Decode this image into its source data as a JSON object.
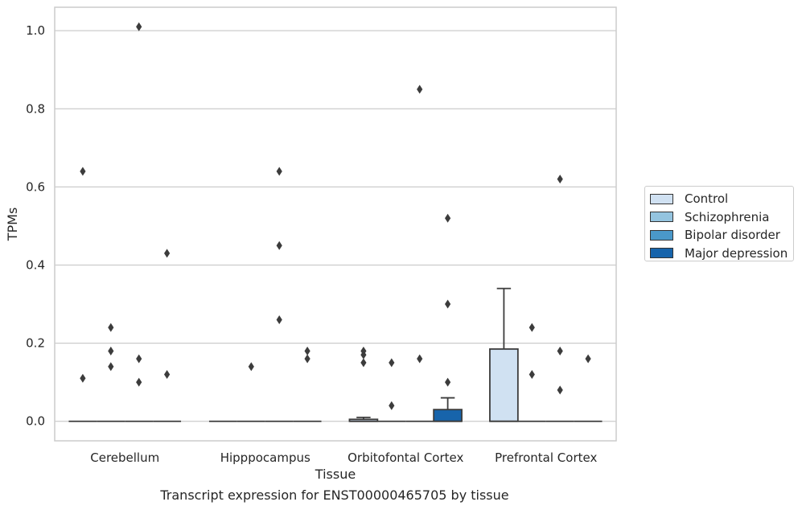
{
  "chart_data": {
    "type": "box",
    "xlabel": "Tissue",
    "ylabel": "TPMs",
    "caption": "Transcript expression for ENST00000465705 by tissue",
    "ylim": [
      -0.05,
      1.06
    ],
    "yticks": [
      0.0,
      0.2,
      0.4,
      0.6,
      0.8,
      1.0
    ],
    "ytick_labels": [
      "0.0",
      "0.2",
      "0.4",
      "0.6",
      "0.8",
      "1.0"
    ],
    "grid": "horizontal",
    "legend_position": "right",
    "categories": [
      "Cerebellum",
      "Hipppocampus",
      "Orbitofontal Cortex",
      "Prefrontal Cortex"
    ],
    "series": [
      {
        "name": "Control",
        "color": "#d0e1f2",
        "boxes": [
          {
            "q1": 0,
            "median": 0,
            "q3": 0,
            "whislo": 0,
            "whishi": 0,
            "fliers": [
              0.11,
              0.64
            ]
          },
          {
            "q1": 0,
            "median": 0,
            "q3": 0,
            "whislo": 0,
            "whishi": 0,
            "fliers": []
          },
          {
            "q1": 0,
            "median": 0,
            "q3": 0.005,
            "whislo": 0,
            "whishi": 0.01,
            "fliers": [
              0.15,
              0.17,
              0.18
            ]
          },
          {
            "q1": 0,
            "median": 0,
            "q3": 0.185,
            "whislo": 0,
            "whishi": 0.34,
            "fliers": []
          }
        ]
      },
      {
        "name": "Schizophrenia",
        "color": "#94c4df",
        "boxes": [
          {
            "q1": 0,
            "median": 0,
            "q3": 0,
            "whislo": 0,
            "whishi": 0,
            "fliers": [
              0.14,
              0.18,
              0.24
            ]
          },
          {
            "q1": 0,
            "median": 0,
            "q3": 0,
            "whislo": 0,
            "whishi": 0,
            "fliers": [
              0.14
            ]
          },
          {
            "q1": 0,
            "median": 0,
            "q3": 0,
            "whislo": 0,
            "whishi": 0,
            "fliers": [
              0.04,
              0.15
            ]
          },
          {
            "q1": 0,
            "median": 0,
            "q3": 0,
            "whislo": 0,
            "whishi": 0,
            "fliers": [
              0.12,
              0.24
            ]
          }
        ]
      },
      {
        "name": "Bipolar disorder",
        "color": "#4a98c9",
        "boxes": [
          {
            "q1": 0,
            "median": 0,
            "q3": 0,
            "whislo": 0,
            "whishi": 0,
            "fliers": [
              0.1,
              0.16,
              1.01
            ]
          },
          {
            "q1": 0,
            "median": 0,
            "q3": 0,
            "whislo": 0,
            "whishi": 0,
            "fliers": [
              0.26,
              0.45,
              0.64
            ]
          },
          {
            "q1": 0,
            "median": 0,
            "q3": 0,
            "whislo": 0,
            "whishi": 0,
            "fliers": [
              0.16,
              0.85
            ]
          },
          {
            "q1": 0,
            "median": 0,
            "q3": 0,
            "whislo": 0,
            "whishi": 0,
            "fliers": [
              0.08,
              0.18,
              0.62
            ]
          }
        ]
      },
      {
        "name": "Major depression",
        "color": "#1764ab",
        "boxes": [
          {
            "q1": 0,
            "median": 0,
            "q3": 0,
            "whislo": 0,
            "whishi": 0,
            "fliers": [
              0.12,
              0.43
            ]
          },
          {
            "q1": 0,
            "median": 0,
            "q3": 0,
            "whislo": 0,
            "whishi": 0,
            "fliers": [
              0.16,
              0.18
            ]
          },
          {
            "q1": 0,
            "median": 0,
            "q3": 0.03,
            "whislo": 0,
            "whishi": 0.06,
            "fliers": [
              0.1,
              0.3,
              0.52
            ]
          },
          {
            "q1": 0,
            "median": 0,
            "q3": 0,
            "whislo": 0,
            "whishi": 0,
            "fliers": [
              0.16
            ]
          }
        ]
      }
    ]
  }
}
